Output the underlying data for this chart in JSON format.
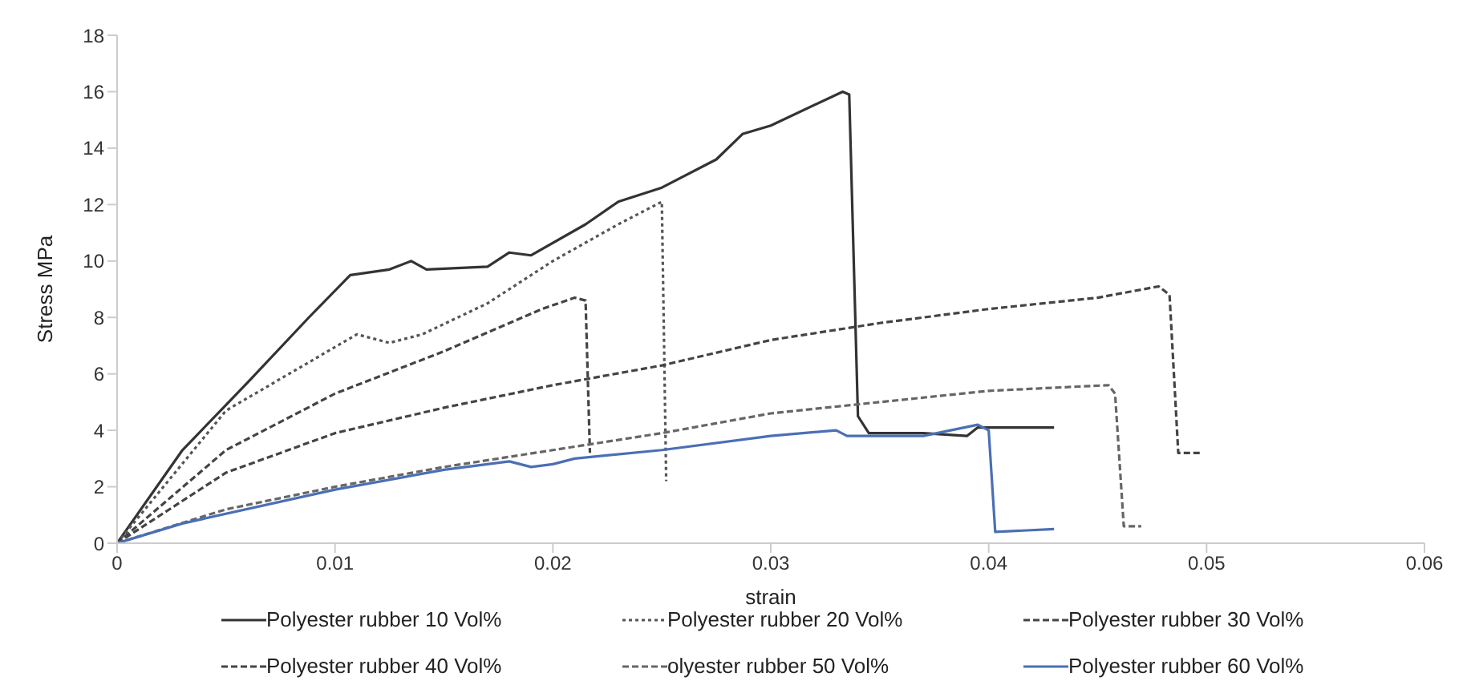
{
  "chart_data": {
    "type": "line",
    "xlabel": "strain",
    "ylabel": "Stress MPa",
    "xlim": [
      0,
      0.06
    ],
    "xticks": [
      0,
      0.01,
      0.02,
      0.03,
      0.04,
      0.05,
      0.06
    ],
    "ylim": [
      0,
      18
    ],
    "yticks": [
      0,
      2,
      4,
      6,
      8,
      10,
      12,
      14,
      16,
      18
    ],
    "grid": false,
    "legend": "bottom",
    "marker": "none",
    "series": [
      {
        "name": "Polyester rubber 10 Vol%",
        "color": "#333333",
        "line_style": "solid",
        "x": [
          0,
          0.003,
          0.006,
          0.0088,
          0.0107,
          0.0125,
          0.0135,
          0.0142,
          0.017,
          0.018,
          0.019,
          0.0215,
          0.023,
          0.025,
          0.0275,
          0.0287,
          0.03,
          0.0333,
          0.0336,
          0.034,
          0.0345,
          0.037,
          0.039,
          0.0395,
          0.043
        ],
        "values": [
          0,
          3.3,
          5.7,
          8,
          9.5,
          9.7,
          10,
          9.7,
          9.8,
          10.3,
          10.2,
          11.3,
          12.1,
          12.6,
          13.6,
          14.5,
          14.8,
          16,
          15.9,
          4.5,
          3.9,
          3.9,
          3.8,
          4.1,
          4.1
        ]
      },
      {
        "name": "Polyester rubber 20 Vol%",
        "color": "#555555",
        "line_style": "dotted",
        "x": [
          0,
          0.005,
          0.011,
          0.0125,
          0.014,
          0.017,
          0.02,
          0.023,
          0.025,
          0.0252
        ],
        "values": [
          0,
          4.7,
          7.4,
          7.1,
          7.4,
          8.5,
          10,
          11.3,
          12.1,
          2.2
        ]
      },
      {
        "name": "Polyester rubber 30 Vol%",
        "color": "#444444",
        "line_style": "dashed",
        "x": [
          0,
          0.005,
          0.01,
          0.015,
          0.0195,
          0.021,
          0.0215,
          0.0217
        ],
        "values": [
          0,
          3.3,
          5.3,
          6.8,
          8.3,
          8.7,
          8.6,
          3.2
        ]
      },
      {
        "name": "Polyester rubber 40 Vol%",
        "color": "#444444",
        "line_style": "dashed",
        "x": [
          0,
          0.005,
          0.01,
          0.015,
          0.02,
          0.025,
          0.03,
          0.035,
          0.04,
          0.045,
          0.0478,
          0.0483,
          0.0487,
          0.0497
        ],
        "values": [
          0,
          2.5,
          3.9,
          4.8,
          5.6,
          6.3,
          7.2,
          7.8,
          8.3,
          8.7,
          9.1,
          8.8,
          3.2,
          3.2
        ]
      },
      {
        "name": "olyester rubber 50 Vol%",
        "color": "#666666",
        "line_style": "dashed",
        "x": [
          0,
          0.005,
          0.01,
          0.015,
          0.02,
          0.025,
          0.03,
          0.035,
          0.04,
          0.0455,
          0.0458,
          0.0462,
          0.047
        ],
        "values": [
          0,
          1.2,
          2,
          2.7,
          3.3,
          3.9,
          4.6,
          5,
          5.4,
          5.6,
          5.3,
          0.6,
          0.6
        ]
      },
      {
        "name": "Polyester rubber 60 Vol%",
        "color": "#4a6fb5",
        "line_style": "solid",
        "x": [
          0,
          0.003,
          0.01,
          0.015,
          0.018,
          0.019,
          0.02,
          0.021,
          0.025,
          0.03,
          0.033,
          0.0335,
          0.037,
          0.0395,
          0.04,
          0.0403,
          0.043
        ],
        "values": [
          0,
          0.7,
          1.9,
          2.6,
          2.9,
          2.7,
          2.8,
          3,
          3.3,
          3.8,
          4,
          3.8,
          3.8,
          4.2,
          4,
          0.4,
          0.5
        ]
      }
    ]
  }
}
